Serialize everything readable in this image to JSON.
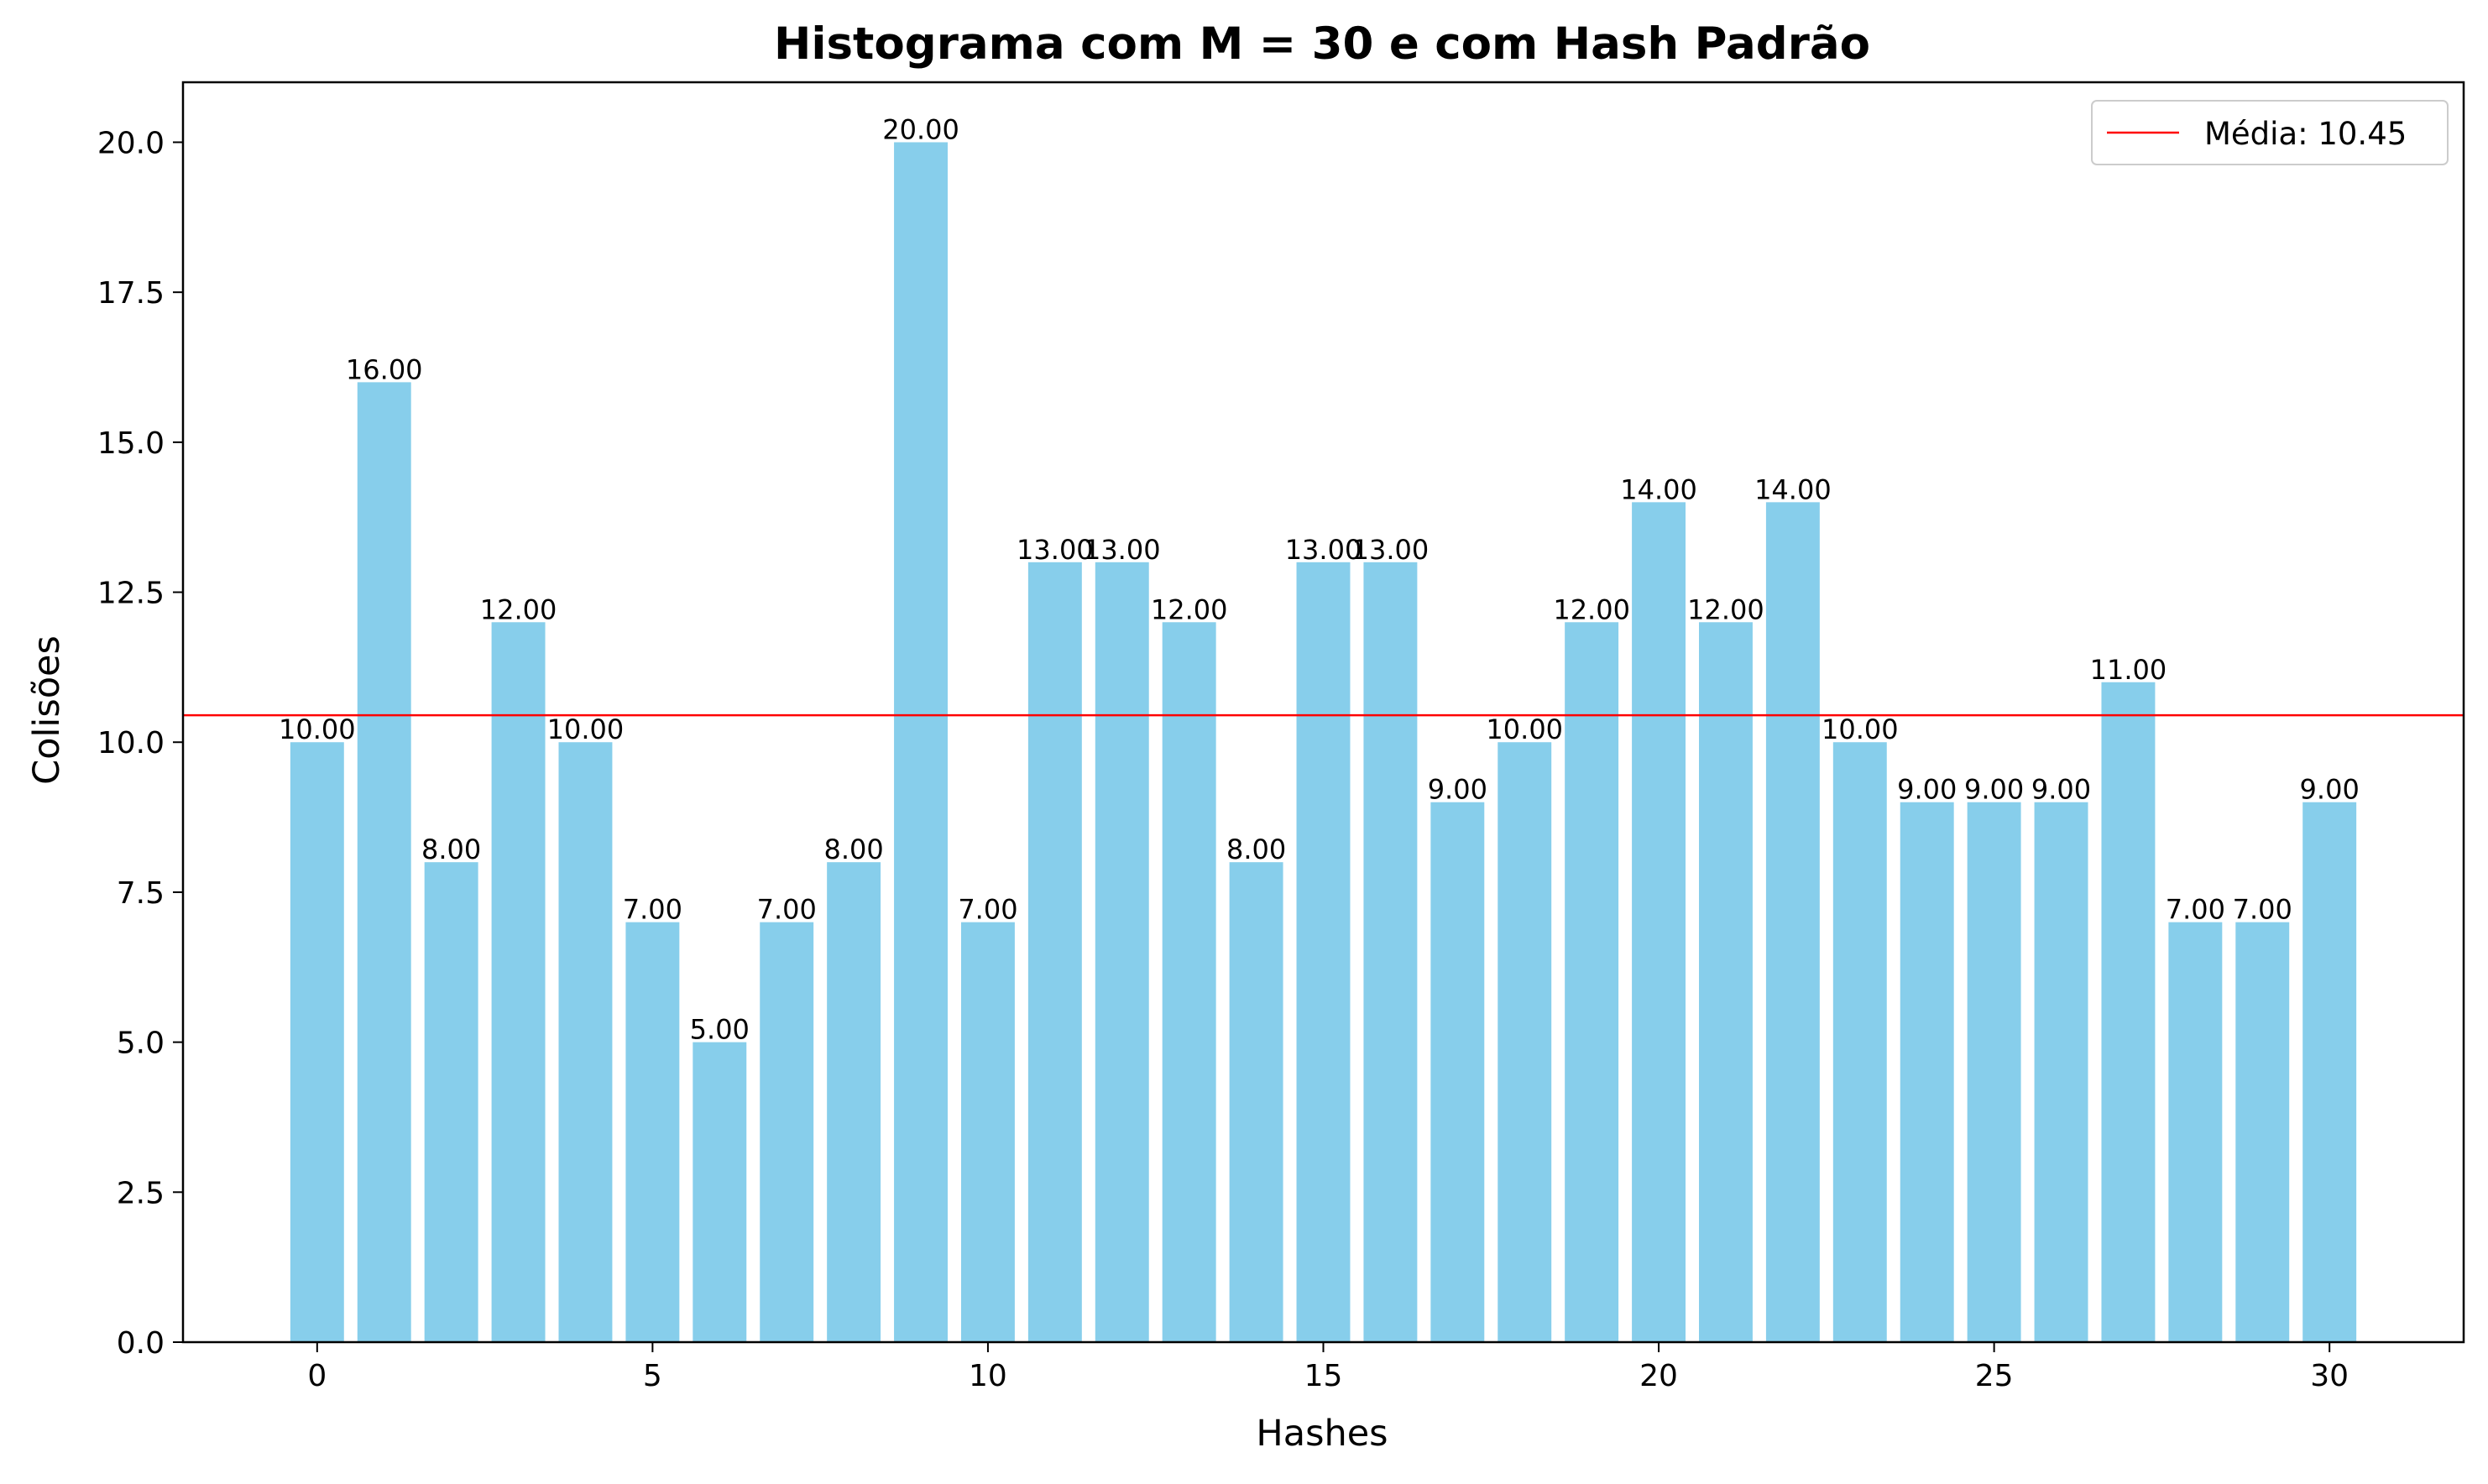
{
  "chart_data": {
    "type": "bar",
    "title": "Histograma com M = 30 e com Hash Padrão",
    "xlabel": "Hashes",
    "ylabel": "Colisões",
    "x": [
      0,
      1,
      2,
      3,
      4,
      5,
      6,
      7,
      8,
      9,
      10,
      11,
      12,
      13,
      14,
      15,
      16,
      17,
      18,
      19,
      20,
      21,
      22,
      23,
      24,
      25,
      26,
      27,
      28,
      29,
      30
    ],
    "values": [
      10,
      16,
      8,
      12,
      10,
      7,
      5,
      7,
      8,
      20,
      7,
      13,
      13,
      12,
      8,
      13,
      13,
      9,
      10,
      12,
      14,
      12,
      14,
      10,
      9,
      9,
      9,
      11,
      7,
      7,
      9
    ],
    "data_labels": [
      "10.00",
      "16.00",
      "8.00",
      "12.00",
      "10.00",
      "7.00",
      "5.00",
      "7.00",
      "8.00",
      "20.00",
      "7.00",
      "13.00",
      "13.00",
      "12.00",
      "8.00",
      "13.00",
      "13.00",
      "9.00",
      "10.00",
      "12.00",
      "14.00",
      "12.00",
      "14.00",
      "10.00",
      "9.00",
      "9.00",
      "9.00",
      "11.00",
      "7.00",
      "7.00",
      "9.00"
    ],
    "xlim": [
      -2.0,
      32.0
    ],
    "ylim": [
      0,
      21
    ],
    "xticks": [
      0,
      5,
      10,
      15,
      20,
      25,
      30
    ],
    "xtick_labels": [
      "0",
      "5",
      "10",
      "15",
      "20",
      "25",
      "30"
    ],
    "yticks": [
      0,
      2.5,
      5,
      7.5,
      10,
      12.5,
      15,
      17.5,
      20
    ],
    "ytick_labels": [
      "0.0",
      "2.5",
      "5.0",
      "7.5",
      "10.0",
      "12.5",
      "15.0",
      "17.5",
      "20.0"
    ],
    "mean_line": {
      "value": 10.45,
      "label": "Média: 10.45",
      "color": "#ff0000"
    },
    "bar_color": "#87ceeb",
    "grid": false,
    "legend": {
      "position": "top-right",
      "entries": [
        "Média: 10.45"
      ]
    }
  }
}
